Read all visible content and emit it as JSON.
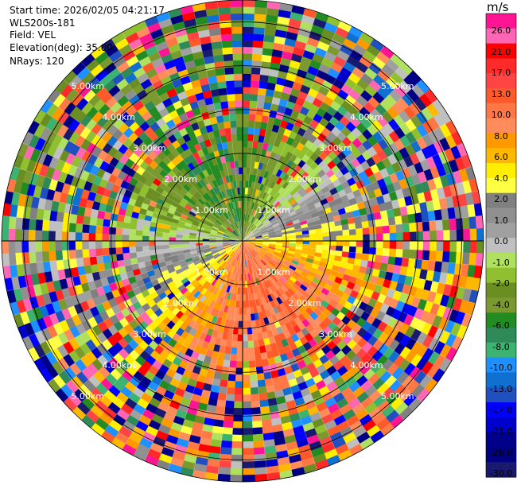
{
  "header": {
    "start_time": "Start time: 2026/02/05 04:21:17",
    "instrument": "WLS200s-181",
    "field": "Field: VEL",
    "elevation": "Elevation(deg): 35.00",
    "nrays": "NRays: 120"
  },
  "chart_data": {
    "type": "heatmap",
    "projection": "polar",
    "nrays": 120,
    "max_range_km": 5.5,
    "range_ring_labels": [
      "1.00km",
      "2.00km",
      "3.00km",
      "4.00km",
      "5.00km"
    ],
    "range_ring_km": [
      1,
      2,
      3,
      4,
      5
    ],
    "label_bearings_deg": [
      45,
      135,
      225,
      315
    ],
    "background_dominant_velocity_by_sector": [
      {
        "sector": "north (upper)",
        "dominant_velocity_ms": -17.0
      },
      {
        "sector": "north-west",
        "dominant_velocity_ms": -6.0
      },
      {
        "sector": "south-east",
        "dominant_velocity_ms": 6.0
      },
      {
        "sector": "south-west",
        "dominant_velocity_ms": 4.0
      },
      {
        "sector": "south",
        "dominant_velocity_ms": 21.0
      }
    ],
    "colorbar": {
      "unit": "m/s",
      "ticks": [
        "26.0",
        "21.0",
        "17.0",
        "13.0",
        "10.0",
        "8.0",
        "6.0",
        "4.0",
        "2.0",
        "1.0",
        "0.0",
        "-1.0",
        "-2.0",
        "-4.0",
        "-6.0",
        "-8.0",
        "-10.0",
        "-13.0",
        "-17.0",
        "-21.0",
        "-26.0",
        "-30.0"
      ],
      "colors": [
        "#ff1493",
        "#ff66b3",
        "#ff0000",
        "#ff2a2a",
        "#ff4444",
        "#ff5a2a",
        "#ff7744",
        "#ff8c5a",
        "#ff9900",
        "#ffb800",
        "#ffee00",
        "#ffff44",
        "#808080",
        "#909090",
        "#a0a0a0",
        "#c0c0c0",
        "#b0e060",
        "#90c030",
        "#6b8e23",
        "#7a9a30",
        "#228b22",
        "#2e8b57",
        "#3cb371",
        "#1e90ff",
        "#1070d0",
        "#2050c0",
        "#0000ff",
        "#0000cd",
        "#00008b",
        "#000080",
        "#191970"
      ]
    }
  }
}
